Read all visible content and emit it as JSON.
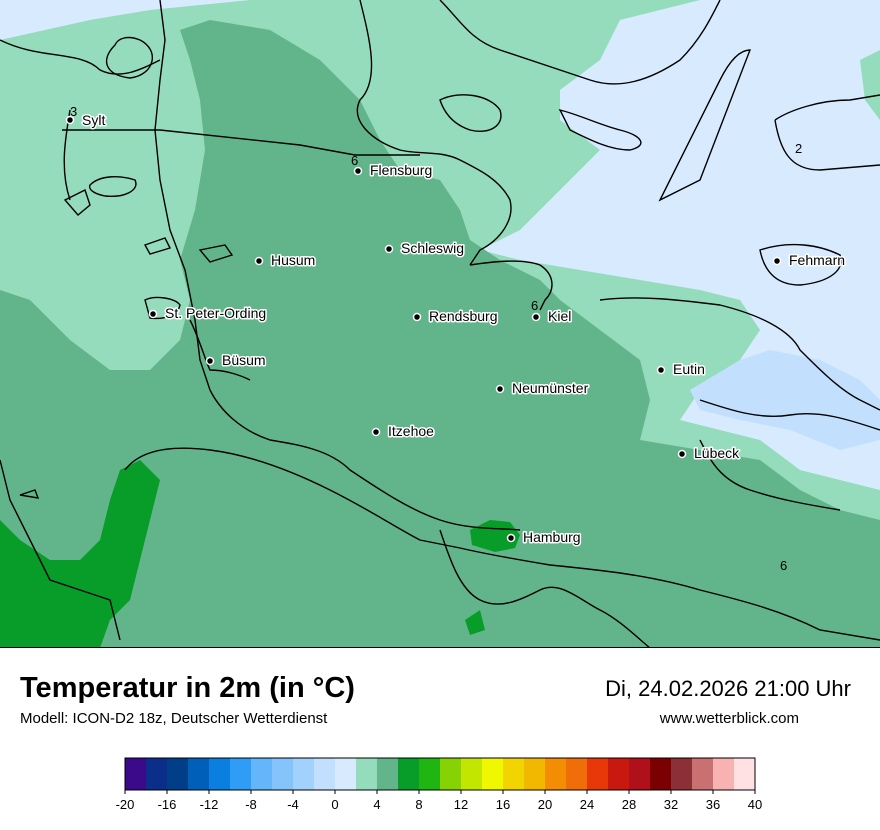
{
  "title": "Temperatur in 2m (in °C)",
  "subtitle": "Modell: ICON-D2 18z, Deutscher Wetterdienst",
  "datetime": "Di, 24.02.2026 21:00 Uhr",
  "website": "www.wetterblick.com",
  "cities": [
    {
      "name": "Sylt"
    },
    {
      "name": "Flensburg"
    },
    {
      "name": "Schleswig"
    },
    {
      "name": "Husum"
    },
    {
      "name": "Fehmarn"
    },
    {
      "name": "St. Peter-Ording"
    },
    {
      "name": "Rendsburg"
    },
    {
      "name": "Kiel"
    },
    {
      "name": "Büsum"
    },
    {
      "name": "Eutin"
    },
    {
      "name": "Neumünster"
    },
    {
      "name": "Itzehoe"
    },
    {
      "name": "Lübeck"
    },
    {
      "name": "Hamburg"
    }
  ],
  "isolines": [
    {
      "value": "3"
    },
    {
      "value": "6"
    },
    {
      "value": "2"
    },
    {
      "value": "6"
    },
    {
      "value": "6"
    }
  ],
  "legend": {
    "colors": [
      "#3a0a8a",
      "#0a2e8a",
      "#003e88",
      "#005fb8",
      "#0a7fe0",
      "#2f9cf5",
      "#64b5fa",
      "#84c4fb",
      "#a2d2fc",
      "#c2e0fd",
      "#d8ebfe",
      "#95dcbc",
      "#62b58a",
      "#079d28",
      "#20b510",
      "#86d203",
      "#c2e600",
      "#f0f800",
      "#f2d400",
      "#f2b800",
      "#f28d04",
      "#ef6e0a",
      "#e8380a",
      "#c8180f",
      "#b0101a",
      "#7a0002",
      "#8a3036",
      "#c87072",
      "#f8b2b2",
      "#ffe0e3"
    ],
    "ticks": [
      "-20",
      "-16",
      "-12",
      "-8",
      "-4",
      "0",
      "4",
      "8",
      "12",
      "16",
      "20",
      "24",
      "28",
      "32",
      "36",
      "40"
    ]
  }
}
